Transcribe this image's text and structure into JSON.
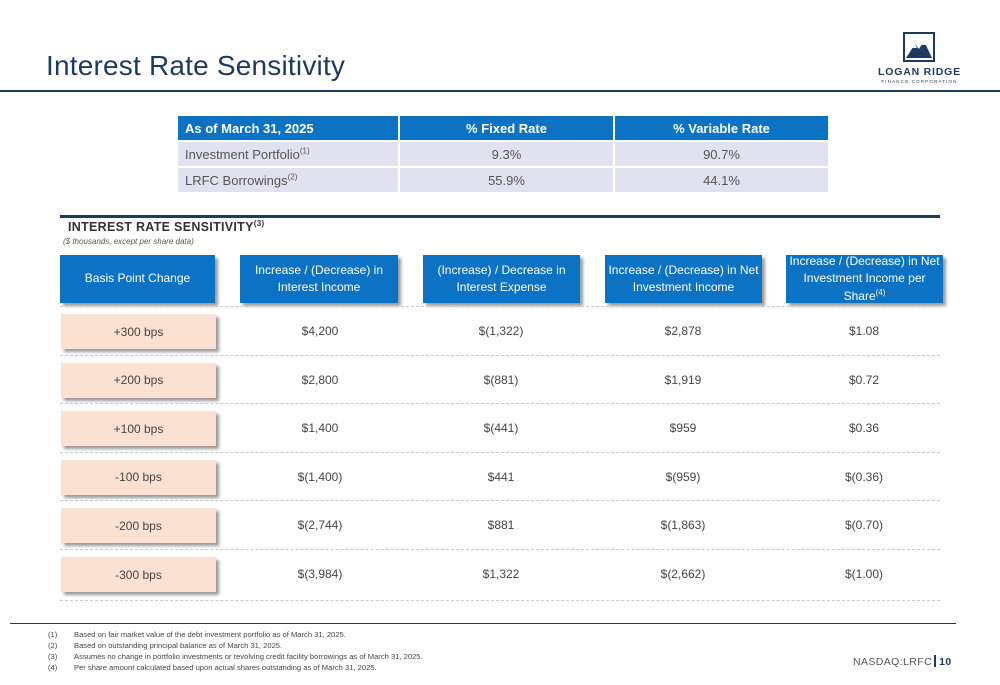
{
  "page": {
    "title": "Interest Rate Sensitivity"
  },
  "logo": {
    "name": "LOGAN RIDGE",
    "sub": "FINANCE CORPORATION"
  },
  "rate_table": {
    "headers": [
      "As of March 31, 2025",
      "% Fixed Rate",
      "% Variable Rate"
    ],
    "rows": [
      {
        "label": "Investment Portfolio",
        "note": "(1)",
        "fixed": "9.3%",
        "variable": "90.7%"
      },
      {
        "label": "LRFC Borrowings",
        "note": "(2)",
        "fixed": "55.9%",
        "variable": "44.1%"
      }
    ]
  },
  "sensitivity": {
    "title": "INTEREST RATE SENSITIVITY",
    "title_note": "(3)",
    "subtitle": "($ thousands, except per share data)",
    "headers": {
      "bps": "Basis Point Change",
      "income": "Increase / (Decrease) in Interest Income",
      "expense": "(Increase) / Decrease in Interest Expense",
      "nii": "Increase / (Decrease) in Net Investment Income",
      "per_share": "Increase / (Decrease) in Net Investment Income per Share",
      "per_share_note": "(4)"
    },
    "rows": [
      {
        "bps": "+300 bps",
        "income": "$4,200",
        "expense": "$(1,322)",
        "nii": "$2,878",
        "per_share": "$1.08"
      },
      {
        "bps": "+200 bps",
        "income": "$2,800",
        "expense": "$(881)",
        "nii": "$1,919",
        "per_share": "$0.72"
      },
      {
        "bps": "+100 bps",
        "income": "$1,400",
        "expense": "$(441)",
        "nii": "$959",
        "per_share": "$0.36"
      },
      {
        "bps": "-100 bps",
        "income": "$(1,400)",
        "expense": "$441",
        "nii": "$(959)",
        "per_share": "$(0.36)"
      },
      {
        "bps": "-200 bps",
        "income": "$(2,744)",
        "expense": "$881",
        "nii": "$(1,863)",
        "per_share": "$(0.70)"
      },
      {
        "bps": "-300 bps",
        "income": "$(3,984)",
        "expense": "$1,322",
        "nii": "$(2,662)",
        "per_share": "$(1.00)"
      }
    ]
  },
  "footnotes": [
    {
      "num": "(1)",
      "text": "Based on fair market value of the debt investment portfolio as of March 31, 2025."
    },
    {
      "num": "(2)",
      "text": "Based on outstanding principal balance as of March 31, 2025."
    },
    {
      "num": "(3)",
      "text": "Assumes no change in portfolio investments or revolving credit facility borrowings as of March 31, 2025."
    },
    {
      "num": "(4)",
      "text": "Per share amount calculated based upon actual shares outstanding as of March 31, 2025."
    }
  ],
  "footer": {
    "ticker": "NASDAQ:LRFC",
    "page": "10"
  },
  "colors": {
    "header_blue": "#0b72c4",
    "navy": "#1f3a5f",
    "peach": "#fbe1d2",
    "row_gray": "#e0e3ef"
  },
  "icons": {
    "logo": "mountain-logo-icon"
  }
}
